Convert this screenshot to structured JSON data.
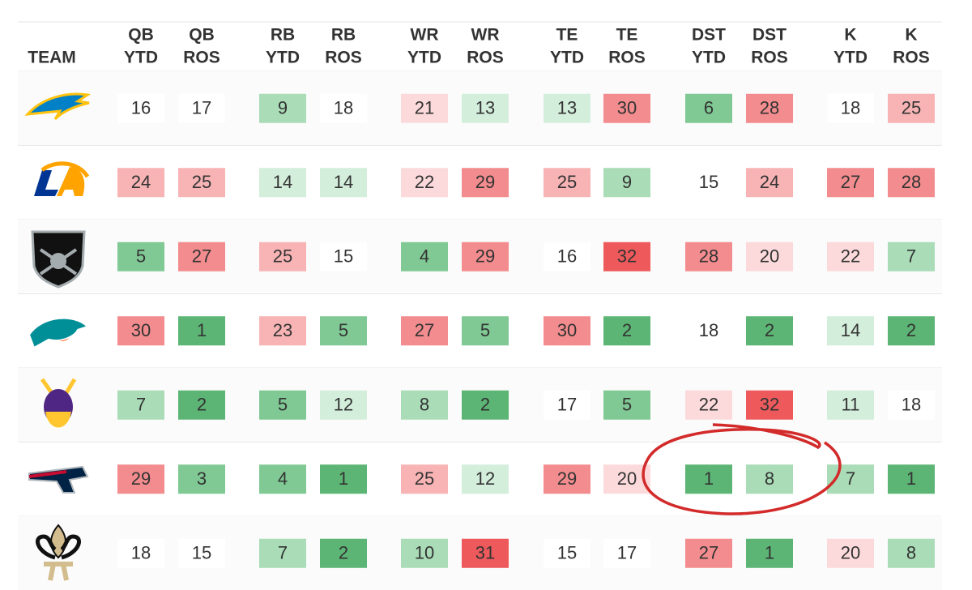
{
  "header": {
    "team": "TEAM",
    "columns": [
      {
        "pos": "QB",
        "period": "YTD"
      },
      {
        "pos": "QB",
        "period": "ROS"
      },
      {
        "pos": "RB",
        "period": "YTD"
      },
      {
        "pos": "RB",
        "period": "ROS"
      },
      {
        "pos": "WR",
        "period": "YTD"
      },
      {
        "pos": "WR",
        "period": "ROS"
      },
      {
        "pos": "TE",
        "period": "YTD"
      },
      {
        "pos": "TE",
        "period": "ROS"
      },
      {
        "pos": "DST",
        "period": "YTD"
      },
      {
        "pos": "DST",
        "period": "ROS"
      },
      {
        "pos": "K",
        "period": "YTD"
      },
      {
        "pos": "K",
        "period": "ROS"
      }
    ]
  },
  "table": {
    "rows": [
      [
        16,
        17,
        9,
        18,
        21,
        13,
        13,
        30,
        6,
        28,
        18,
        25
      ],
      [
        24,
        25,
        14,
        14,
        22,
        29,
        25,
        9,
        15,
        24,
        27,
        28
      ],
      [
        5,
        27,
        25,
        15,
        4,
        29,
        16,
        32,
        28,
        20,
        22,
        7
      ],
      [
        30,
        1,
        23,
        5,
        27,
        5,
        30,
        2,
        18,
        2,
        14,
        2
      ],
      [
        7,
        2,
        5,
        12,
        8,
        2,
        17,
        5,
        22,
        32,
        11,
        18
      ],
      [
        29,
        3,
        4,
        1,
        25,
        12,
        29,
        20,
        1,
        8,
        7,
        1
      ],
      [
        18,
        15,
        7,
        2,
        10,
        31,
        15,
        17,
        27,
        1,
        20,
        8
      ]
    ]
  }
}
